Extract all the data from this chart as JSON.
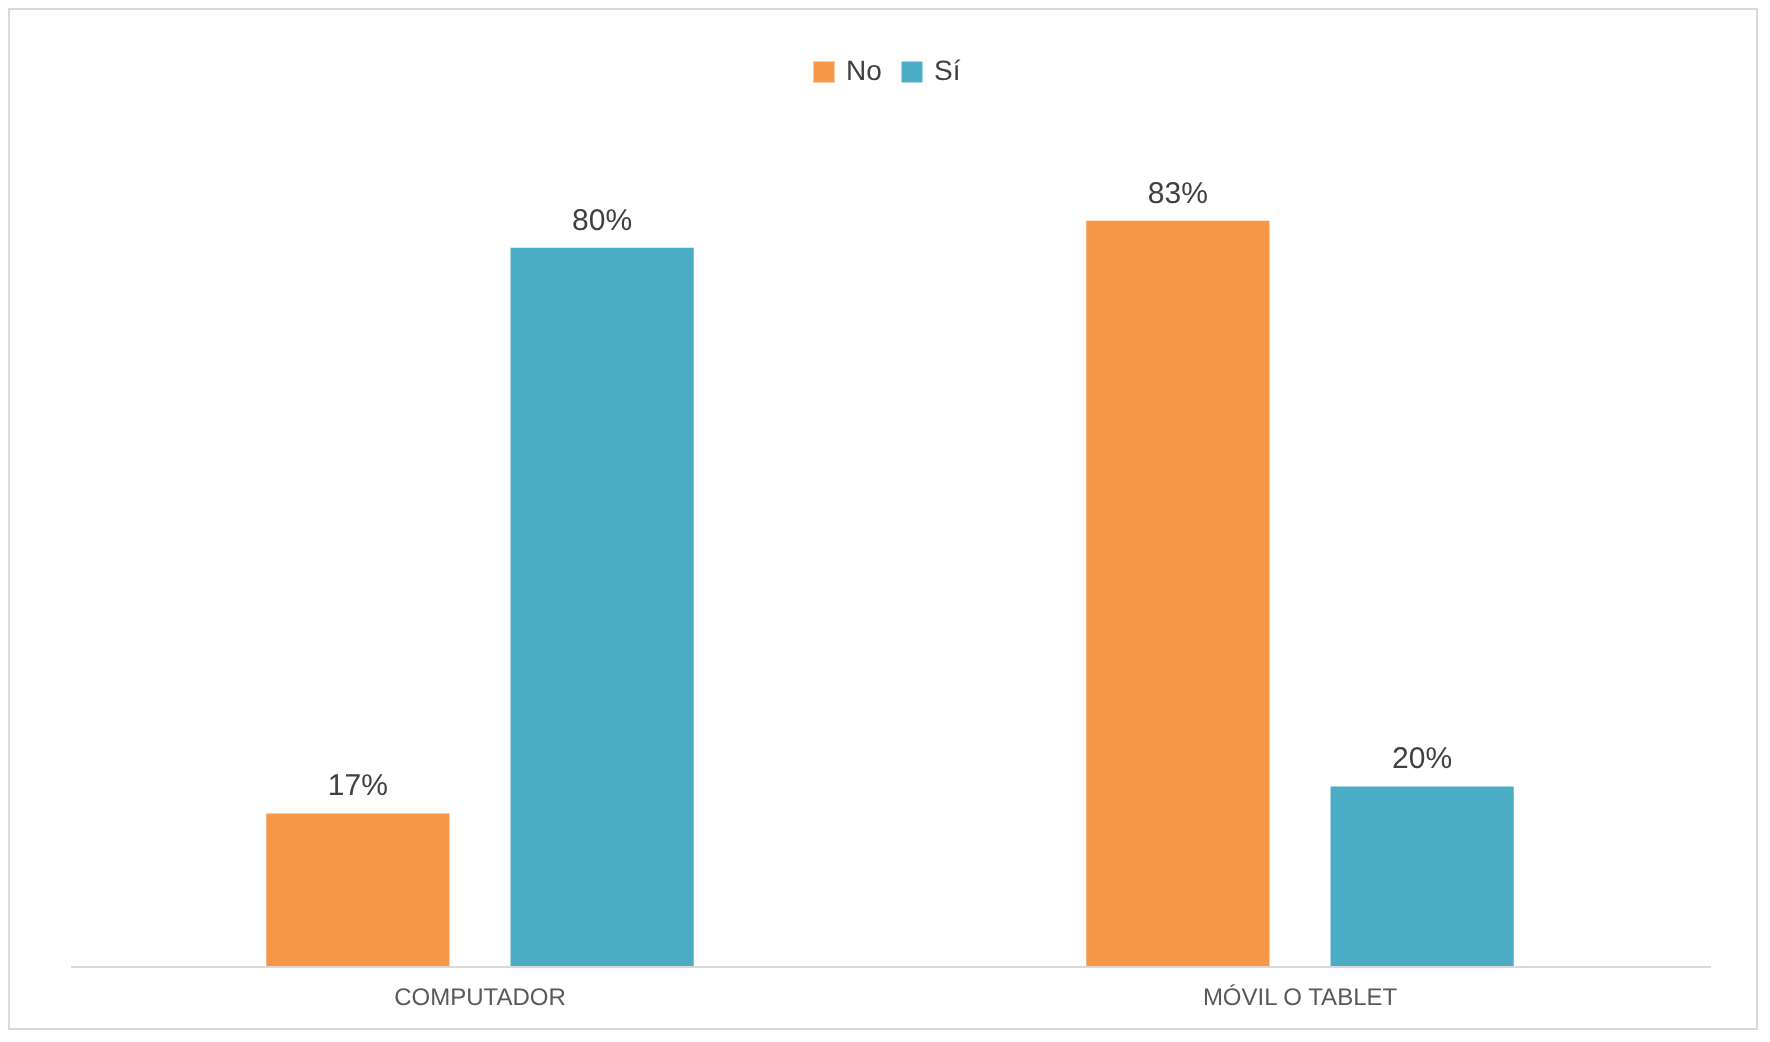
{
  "chart_data": {
    "type": "bar",
    "categories": [
      "COMPUTADOR",
      "MÓVIL O TABLET"
    ],
    "series": [
      {
        "name": "No",
        "color": "#f79646",
        "values": [
          17,
          83
        ],
        "value_labels": [
          "17%",
          "83%"
        ]
      },
      {
        "name": "Sí",
        "color": "#4bacc6",
        "values": [
          80,
          20
        ],
        "value_labels": [
          "80%",
          "20%"
        ]
      }
    ],
    "legend": "top"
  }
}
